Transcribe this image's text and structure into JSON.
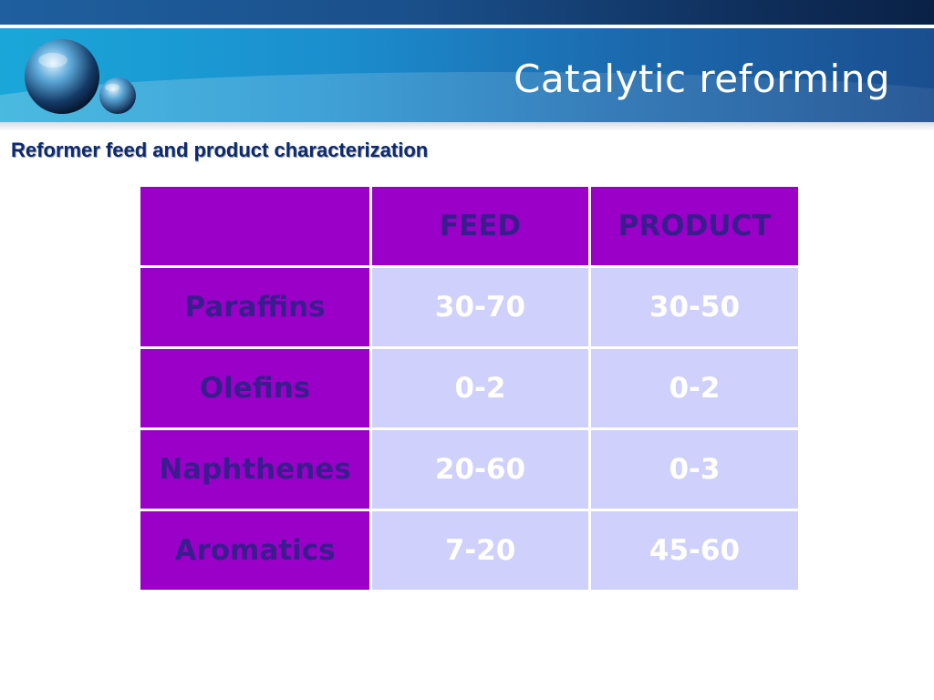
{
  "slide": {
    "title": "Catalytic reforming",
    "subtitle": "Reformer feed and product characterization"
  },
  "table": {
    "headers": [
      "",
      "FEED",
      "PRODUCT"
    ],
    "rows": [
      {
        "label": "Paraffins",
        "feed": "30-70",
        "product": "30-50"
      },
      {
        "label": "Olefins",
        "feed": "0-2",
        "product": "0-2"
      },
      {
        "label": "Naphthenes",
        "feed": "20-60",
        "product": "0-3"
      },
      {
        "label": "Aromatics",
        "feed": "7-20",
        "product": "45-60"
      }
    ]
  },
  "colors": {
    "header_cell": "#9a00c8",
    "value_cell": "#cfd0fb",
    "dark_text": "#3a1c8e",
    "banner": "#1b8fcf"
  },
  "icons": [
    "sphere-logo-icon"
  ]
}
